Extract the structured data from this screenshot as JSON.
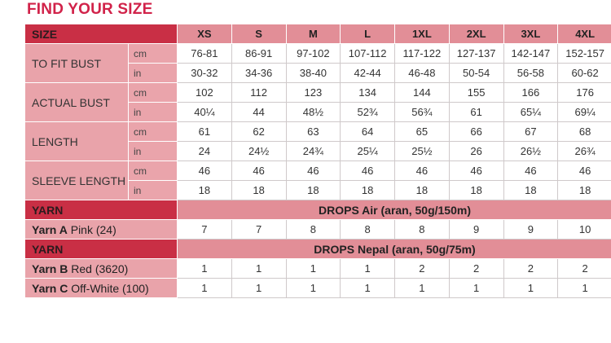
{
  "title": "FIND YOUR SIZE",
  "size_label": "SIZE",
  "sizes": [
    "XS",
    "S",
    "M",
    "L",
    "1XL",
    "2XL",
    "3XL",
    "4XL"
  ],
  "size_colors": [
    "#333333",
    "#c03a6b",
    "#2f5c9a",
    "#7ba84a",
    "#a07ab8",
    "#2c8fbf",
    "#c32533",
    "#3fa39a"
  ],
  "measurements": [
    {
      "label": "TO FIT BUST",
      "rows": [
        {
          "unit": "cm",
          "values": [
            "76-81",
            "86-91",
            "97-102",
            "107-112",
            "117-122",
            "127-137",
            "142-147",
            "152-157"
          ]
        },
        {
          "unit": "in",
          "values": [
            "30-32",
            "34-36",
            "38-40",
            "42-44",
            "46-48",
            "50-54",
            "56-58",
            "60-62"
          ]
        }
      ]
    },
    {
      "label": "ACTUAL BUST",
      "rows": [
        {
          "unit": "cm",
          "values": [
            "102",
            "112",
            "123",
            "134",
            "144",
            "155",
            "166",
            "176"
          ]
        },
        {
          "unit": "in",
          "values": [
            "40¼",
            "44",
            "48½",
            "52¾",
            "56¾",
            "61",
            "65¼",
            "69¼"
          ]
        }
      ]
    },
    {
      "label": "LENGTH",
      "rows": [
        {
          "unit": "cm",
          "values": [
            "61",
            "62",
            "63",
            "64",
            "65",
            "66",
            "67",
            "68"
          ]
        },
        {
          "unit": "in",
          "values": [
            "24",
            "24½",
            "24¾",
            "25¼",
            "25½",
            "26",
            "26½",
            "26¾"
          ]
        }
      ]
    },
    {
      "label": "SLEEVE LENGTH",
      "rows": [
        {
          "unit": "cm",
          "values": [
            "46",
            "46",
            "46",
            "46",
            "46",
            "46",
            "46",
            "46"
          ]
        },
        {
          "unit": "in",
          "values": [
            "18",
            "18",
            "18",
            "18",
            "18",
            "18",
            "18",
            "18"
          ]
        }
      ]
    }
  ],
  "yarn_sections": [
    {
      "header": "YARN",
      "product": "DROPS Air (aran, 50g/150m)",
      "yarns": [
        {
          "name": "Yarn A",
          "color": "Pink (24)",
          "values": [
            "7",
            "7",
            "8",
            "8",
            "8",
            "9",
            "9",
            "10"
          ]
        }
      ]
    },
    {
      "header": "YARN",
      "product": "DROPS Nepal (aran, 50g/75m)",
      "yarns": [
        {
          "name": "Yarn B",
          "color": "Red (3620)",
          "values": [
            "1",
            "1",
            "1",
            "1",
            "2",
            "2",
            "2",
            "2"
          ]
        },
        {
          "name": "Yarn C",
          "color": "Off-White (100)",
          "values": [
            "1",
            "1",
            "1",
            "1",
            "1",
            "1",
            "1",
            "1"
          ]
        }
      ]
    }
  ]
}
